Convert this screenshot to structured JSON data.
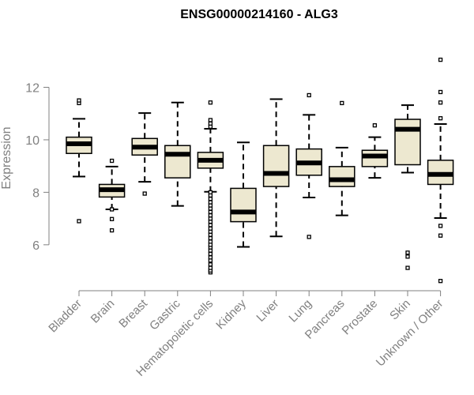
{
  "chart_data": {
    "type": "box",
    "title": "ENSG00000214160 - ALG3",
    "xlabel": "",
    "ylabel": "Expression",
    "ylim": [
      4.4,
      13.4
    ],
    "yticks": [
      6,
      8,
      10,
      12
    ],
    "grid": false,
    "legend": "none",
    "box_fill": "#ede8d0",
    "categories": [
      "Bladder",
      "Brain",
      "Breast",
      "Gastric",
      "Hematopoietic cells",
      "Kidney",
      "Liver",
      "Lung",
      "Pancreas",
      "Prostate",
      "Skin",
      "Unknown / Other"
    ],
    "boxes": [
      {
        "whisker_low": 8.6,
        "q1": 9.48,
        "median": 9.85,
        "q3": 10.1,
        "whisker_high": 10.8,
        "outliers": [
          6.9,
          11.4,
          11.5
        ]
      },
      {
        "whisker_low": 7.35,
        "q1": 7.82,
        "median": 8.1,
        "q3": 8.3,
        "whisker_high": 8.98,
        "outliers": [
          6.55,
          6.98,
          7.35,
          9.2
        ]
      },
      {
        "whisker_low": 8.4,
        "q1": 9.42,
        "median": 9.72,
        "q3": 10.05,
        "whisker_high": 11.02,
        "outliers": [
          7.95
        ]
      },
      {
        "whisker_low": 7.48,
        "q1": 8.55,
        "median": 9.45,
        "q3": 9.78,
        "whisker_high": 11.42,
        "outliers": []
      },
      {
        "whisker_low": 8.02,
        "q1": 8.92,
        "median": 9.22,
        "q3": 9.52,
        "whisker_high": 10.42,
        "outliers": [
          4.95,
          5.02,
          5.12,
          5.25,
          5.4,
          5.52,
          5.65,
          5.78,
          5.9,
          6.0,
          6.12,
          6.25,
          6.38,
          6.5,
          6.62,
          6.75,
          6.88,
          7.0,
          7.12,
          7.25,
          7.38,
          7.5,
          7.62,
          7.75,
          7.88,
          8.0,
          10.5,
          10.62,
          10.75,
          11.42
        ]
      },
      {
        "whisker_low": 5.92,
        "q1": 6.88,
        "median": 7.25,
        "q3": 8.15,
        "whisker_high": 9.9,
        "outliers": []
      },
      {
        "whisker_low": 6.32,
        "q1": 8.22,
        "median": 8.72,
        "q3": 9.78,
        "whisker_high": 11.55,
        "outliers": []
      },
      {
        "whisker_low": 7.8,
        "q1": 8.65,
        "median": 9.12,
        "q3": 9.65,
        "whisker_high": 10.95,
        "outliers": [
          6.3,
          11.7
        ]
      },
      {
        "whisker_low": 7.12,
        "q1": 8.22,
        "median": 8.48,
        "q3": 8.98,
        "whisker_high": 9.7,
        "outliers": [
          11.4
        ]
      },
      {
        "whisker_low": 8.55,
        "q1": 8.98,
        "median": 9.38,
        "q3": 9.6,
        "whisker_high": 10.1,
        "outliers": [
          10.55
        ]
      },
      {
        "whisker_low": 8.75,
        "q1": 9.05,
        "median": 10.4,
        "q3": 10.78,
        "whisker_high": 11.32,
        "outliers": [
          5.12,
          5.55,
          5.7
        ]
      },
      {
        "whisker_low": 7.02,
        "q1": 8.3,
        "median": 8.68,
        "q3": 9.22,
        "whisker_high": 10.6,
        "outliers": [
          4.62,
          6.35,
          6.72,
          10.82,
          11.42,
          11.82,
          13.05
        ]
      }
    ]
  }
}
